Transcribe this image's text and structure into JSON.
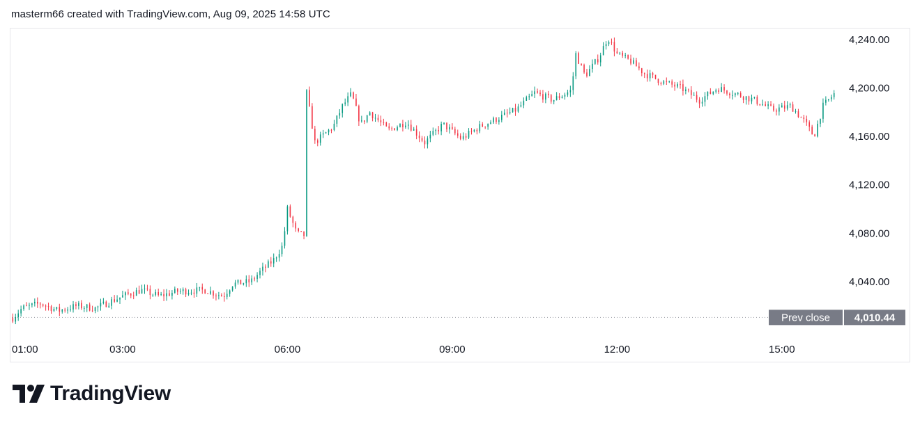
{
  "caption": "masterm66 created with TradingView.com, Aug 09, 2025 14:58 UTC",
  "brand": {
    "name": "TradingView",
    "logo_icon": "tradingview-logo-icon"
  },
  "colors": {
    "up": "#089981",
    "down": "#f23645",
    "text": "#131722",
    "prev_close_bg": "#787b86",
    "grid_line": "#e6e6ea"
  },
  "chart_data": {
    "type": "candlestick",
    "title": "",
    "xlabel": "",
    "ylabel": "",
    "x_ticks": [
      "01:00",
      "03:00",
      "06:00",
      "09:00",
      "12:00",
      "15:00"
    ],
    "y_ticks": [
      "4,040.00",
      "4,080.00",
      "4,120.00",
      "4,160.00",
      "4,200.00",
      "4,240.00"
    ],
    "y_tick_values": [
      4040,
      4080,
      4120,
      4160,
      4200,
      4240
    ],
    "ylim": [
      3998,
      4248
    ],
    "xlim": [
      "00:59",
      "15:58"
    ],
    "prev_close": {
      "label": "Prev close",
      "value_label": "4,010.44",
      "value": 4010.44
    },
    "grid": false,
    "price_path": [
      [
        "01:00",
        4010
      ],
      [
        "01:10",
        4018
      ],
      [
        "01:30",
        4022
      ],
      [
        "01:50",
        4016
      ],
      [
        "02:10",
        4020
      ],
      [
        "02:30",
        4018
      ],
      [
        "03:00",
        4028
      ],
      [
        "03:20",
        4033
      ],
      [
        "03:40",
        4028
      ],
      [
        "04:00",
        4032
      ],
      [
        "04:30",
        4033
      ],
      [
        "04:50",
        4028
      ],
      [
        "05:00",
        4038
      ],
      [
        "05:20",
        4040
      ],
      [
        "05:30",
        4048
      ],
      [
        "05:45",
        4058
      ],
      [
        "05:55",
        4070
      ],
      [
        "06:00",
        4100
      ],
      [
        "06:10",
        4080
      ],
      [
        "06:20",
        4078
      ],
      [
        "06:21",
        4196
      ],
      [
        "06:30",
        4155
      ],
      [
        "06:50",
        4168
      ],
      [
        "07:00",
        4185
      ],
      [
        "07:10",
        4195
      ],
      [
        "07:20",
        4170
      ],
      [
        "07:30",
        4180
      ],
      [
        "07:50",
        4165
      ],
      [
        "08:10",
        4172
      ],
      [
        "08:30",
        4155
      ],
      [
        "08:50",
        4170
      ],
      [
        "09:10",
        4158
      ],
      [
        "09:30",
        4168
      ],
      [
        "09:50",
        4175
      ],
      [
        "10:10",
        4182
      ],
      [
        "10:30",
        4196
      ],
      [
        "10:50",
        4190
      ],
      [
        "11:10",
        4198
      ],
      [
        "11:15",
        4228
      ],
      [
        "11:25",
        4210
      ],
      [
        "11:40",
        4225
      ],
      [
        "11:50",
        4242
      ],
      [
        "12:00",
        4228
      ],
      [
        "12:15",
        4222
      ],
      [
        "12:30",
        4212
      ],
      [
        "12:50",
        4205
      ],
      [
        "13:10",
        4200
      ],
      [
        "13:30",
        4190
      ],
      [
        "13:50",
        4200
      ],
      [
        "14:10",
        4195
      ],
      [
        "14:30",
        4190
      ],
      [
        "14:50",
        4182
      ],
      [
        "15:10",
        4185
      ],
      [
        "15:25",
        4172
      ],
      [
        "15:35",
        4160
      ],
      [
        "15:45",
        4185
      ],
      [
        "15:58",
        4196
      ]
    ]
  }
}
